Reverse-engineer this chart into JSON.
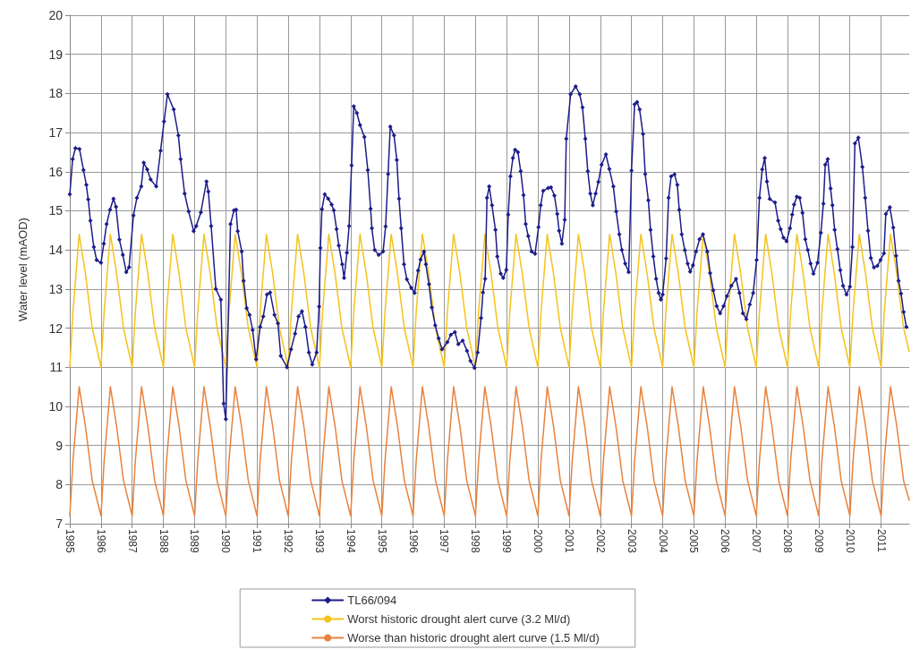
{
  "chart_data": {
    "type": "line",
    "ylabel": "Water level (mAOD)",
    "xlim": [
      1985,
      2011.9
    ],
    "xticks": [
      1985,
      1986,
      1987,
      1988,
      1989,
      1990,
      1991,
      1992,
      1993,
      1994,
      1995,
      1996,
      1997,
      1998,
      1999,
      2000,
      2001,
      2002,
      2003,
      2004,
      2005,
      2006,
      2007,
      2008,
      2009,
      2010,
      2011
    ],
    "ylim": [
      7,
      20
    ],
    "yticks": [
      7,
      8,
      9,
      10,
      11,
      12,
      13,
      14,
      15,
      16,
      17,
      18,
      19,
      20
    ],
    "grid": true,
    "legend": "bottom",
    "line_style": "solid",
    "series": [
      {
        "name": "TL66/094",
        "color": "#1c1c8a",
        "marker": "diamond",
        "x": [
          1985,
          1985.09,
          1985.18,
          1985.31,
          1985.44,
          1985.53,
          1985.59,
          1985.66,
          1985.77,
          1985.86,
          1986,
          1986.09,
          1986.18,
          1986.29,
          1986.4,
          1986.48,
          1986.59,
          1986.7,
          1986.81,
          1986.9,
          1987.04,
          1987.15,
          1987.29,
          1987.37,
          1987.48,
          1987.59,
          1987.77,
          1987.91,
          1988.02,
          1988.13,
          1988.33,
          1988.48,
          1988.55,
          1988.68,
          1988.81,
          1988.97,
          1989.05,
          1989.2,
          1989.38,
          1989.44,
          1989.53,
          1989.68,
          1989.84,
          1989.93,
          1990,
          1990.15,
          1990.26,
          1990.33,
          1990.38,
          1990.51,
          1990.57,
          1990.67,
          1990.76,
          1990.86,
          1990.97,
          1991.1,
          1991.2,
          1991.32,
          1991.42,
          1991.56,
          1991.67,
          1991.76,
          1991.96,
          1992.09,
          1992.22,
          1992.33,
          1992.44,
          1992.55,
          1992.66,
          1992.77,
          1992.91,
          1992.99,
          1993.03,
          1993.08,
          1993.17,
          1993.28,
          1993.39,
          1993.46,
          1993.55,
          1993.62,
          1993.73,
          1993.79,
          1993.88,
          1993.95,
          1994.03,
          1994.1,
          1994.2,
          1994.3,
          1994.44,
          1994.55,
          1994.64,
          1994.68,
          1994.77,
          1994.9,
          1995.04,
          1995.12,
          1995.2,
          1995.27,
          1995.39,
          1995.48,
          1995.55,
          1995.62,
          1995.71,
          1995.8,
          1995.94,
          1996.05,
          1996.16,
          1996.24,
          1996.35,
          1996.41,
          1996.51,
          1996.6,
          1996.71,
          1996.82,
          1996.93,
          1997.1,
          1997.21,
          1997.34,
          1997.45,
          1997.59,
          1997.73,
          1997.84,
          1997.97,
          1998.07,
          1998.18,
          1998.24,
          1998.31,
          1998.37,
          1998.44,
          1998.53,
          1998.64,
          1998.7,
          1998.81,
          1998.89,
          1998.99,
          1999.05,
          1999.12,
          1999.2,
          1999.27,
          1999.36,
          1999.45,
          1999.54,
          1999.61,
          1999.69,
          1999.8,
          1999.91,
          2000.02,
          2000.09,
          2000.17,
          2000.33,
          2000.42,
          2000.53,
          2000.62,
          2000.68,
          2000.77,
          2000.86,
          2000.91,
          2001.05,
          2001.21,
          2001.34,
          2001.43,
          2001.52,
          2001.6,
          2001.68,
          2001.76,
          2001.85,
          2001.94,
          2002.04,
          2002.18,
          2002.29,
          2002.42,
          2002.51,
          2002.61,
          2002.69,
          2002.8,
          2002.91,
          2003,
          2003.1,
          2003.18,
          2003.26,
          2003.37,
          2003.44,
          2003.54,
          2003.61,
          2003.7,
          2003.79,
          2003.87,
          2003.94,
          2004,
          2004.11,
          2004.19,
          2004.27,
          2004.38,
          2004.47,
          2004.53,
          2004.61,
          2004.71,
          2004.8,
          2004.88,
          2004.97,
          2005.07,
          2005.18,
          2005.29,
          2005.43,
          2005.52,
          2005.62,
          2005.73,
          2005.84,
          2005.95,
          2006.06,
          2006.2,
          2006.35,
          2006.46,
          2006.57,
          2006.68,
          2006.79,
          2006.9,
          2007.01,
          2007.1,
          2007.19,
          2007.27,
          2007.34,
          2007.43,
          2007.6,
          2007.7,
          2007.78,
          2007.87,
          2007.97,
          2008.08,
          2008.15,
          2008.21,
          2008.3,
          2008.39,
          2008.48,
          2008.57,
          2008.65,
          2008.74,
          2008.83,
          2008.96,
          2009.07,
          2009.15,
          2009.21,
          2009.29,
          2009.38,
          2009.44,
          2009.51,
          2009.6,
          2009.69,
          2009.78,
          2009.89,
          2010,
          2010.08,
          2010.16,
          2010.27,
          2010.4,
          2010.49,
          2010.58,
          2010.67,
          2010.77,
          2010.88,
          2010.98,
          2011.09,
          2011.15,
          2011.28,
          2011.39,
          2011.48,
          2011.56,
          2011.64,
          2011.72,
          2011.81
        ],
        "values": [
          15.42,
          16.32,
          16.6,
          16.58,
          16.04,
          15.66,
          15.29,
          14.75,
          14.07,
          13.74,
          13.67,
          14.16,
          14.66,
          15.03,
          15.31,
          15.1,
          14.26,
          13.87,
          13.43,
          13.56,
          14.88,
          15.33,
          15.62,
          16.23,
          16.06,
          15.8,
          15.62,
          16.54,
          17.28,
          17.98,
          17.59,
          16.93,
          16.32,
          15.44,
          14.98,
          14.48,
          14.61,
          14.96,
          15.75,
          15.49,
          14.61,
          13,
          12.73,
          10.07,
          9.67,
          14.66,
          15.01,
          15.03,
          14.48,
          13.96,
          13.21,
          12.51,
          12.34,
          11.95,
          11.2,
          12.03,
          12.3,
          12.86,
          12.91,
          12.34,
          12.12,
          11.29,
          11,
          11.46,
          11.86,
          12.3,
          12.43,
          12.03,
          11.38,
          11.07,
          11.38,
          12.55,
          14.05,
          15.04,
          15.42,
          15.31,
          15.16,
          15.01,
          14.53,
          14.11,
          13.63,
          13.28,
          13.93,
          14.61,
          16.16,
          17.67,
          17.5,
          17.19,
          16.89,
          16.04,
          15.05,
          14.55,
          14,
          13.87,
          13.96,
          14.6,
          15.94,
          17.15,
          16.93,
          16.3,
          15.31,
          14.55,
          13.63,
          13.25,
          13.03,
          12.9,
          13.47,
          13.75,
          13.96,
          13.63,
          13.12,
          12.53,
          12.07,
          11.74,
          11.46,
          11.64,
          11.83,
          11.9,
          11.59,
          11.68,
          11.42,
          11.16,
          10.98,
          11.38,
          12.26,
          12.91,
          13.26,
          15.33,
          15.62,
          15.14,
          14.51,
          13.83,
          13.39,
          13.28,
          13.49,
          14.9,
          15.88,
          16.35,
          16.56,
          16.5,
          16.01,
          15.4,
          14.66,
          14.35,
          13.96,
          13.9,
          14.58,
          15.14,
          15.51,
          15.58,
          15.6,
          15.39,
          14.92,
          14.49,
          14.16,
          14.77,
          16.84,
          17.98,
          18.18,
          17.98,
          17.64,
          16.84,
          16.01,
          15.44,
          15.14,
          15.44,
          15.74,
          16.18,
          16.44,
          16.07,
          15.62,
          14.98,
          14.4,
          14,
          13.65,
          13.43,
          16.03,
          17.72,
          17.78,
          17.59,
          16.96,
          15.94,
          15.27,
          14.51,
          13.83,
          13.26,
          12.9,
          12.73,
          12.86,
          13.78,
          15.33,
          15.88,
          15.93,
          15.66,
          15.03,
          14.4,
          13.99,
          13.65,
          13.44,
          13.61,
          13.96,
          14.27,
          14.4,
          13.96,
          13.41,
          12.97,
          12.56,
          12.38,
          12.56,
          12.82,
          13.08,
          13.26,
          12.9,
          12.38,
          12.23,
          12.6,
          12.9,
          13.74,
          15.33,
          16.06,
          16.35,
          15.75,
          15.3,
          15.21,
          14.75,
          14.53,
          14.31,
          14.22,
          14.55,
          14.9,
          15.16,
          15.36,
          15.33,
          14.95,
          14.27,
          14,
          13.65,
          13.39,
          13.67,
          14.44,
          15.18,
          16.18,
          16.32,
          15.57,
          15.14,
          14.51,
          14.02,
          13.48,
          13.08,
          12.86,
          13.06,
          14.07,
          16.72,
          16.87,
          16.12,
          15.33,
          14.49,
          13.79,
          13.55,
          13.59,
          13.74,
          13.91,
          14.92,
          15.09,
          14.57,
          13.85,
          13.21,
          12.88,
          12.41,
          12.03
        ]
      },
      {
        "name": "Worst historic drought alert curve (3.2 Ml/d)",
        "color": "#f5c31c",
        "marker": "none",
        "x": [
          1985,
          1985.1,
          1985.3,
          1985.5,
          1985.72,
          1986,
          1986.1,
          1986.3,
          1986.5,
          1986.72,
          1987,
          1987.1,
          1987.3,
          1987.5,
          1987.72,
          1988,
          1988.1,
          1988.3,
          1988.5,
          1988.72,
          1989,
          1989.1,
          1989.3,
          1989.5,
          1989.72,
          1990,
          1990.1,
          1990.3,
          1990.5,
          1990.72,
          1991,
          1991.1,
          1991.3,
          1991.5,
          1991.72,
          1992,
          1992.1,
          1992.3,
          1992.5,
          1992.72,
          1993,
          1993.1,
          1993.3,
          1993.5,
          1993.72,
          1994,
          1994.1,
          1994.3,
          1994.5,
          1994.72,
          1995,
          1995.1,
          1995.3,
          1995.5,
          1995.72,
          1996,
          1996.1,
          1996.3,
          1996.5,
          1996.72,
          1997,
          1997.1,
          1997.3,
          1997.5,
          1997.72,
          1998,
          1998.1,
          1998.3,
          1998.5,
          1998.72,
          1999,
          1999.1,
          1999.3,
          1999.5,
          1999.72,
          2000,
          2000.1,
          2000.3,
          2000.5,
          2000.72,
          2001,
          2001.1,
          2001.3,
          2001.5,
          2001.72,
          2002,
          2002.1,
          2002.3,
          2002.5,
          2002.72,
          2003,
          2003.1,
          2003.3,
          2003.5,
          2003.72,
          2004,
          2004.1,
          2004.3,
          2004.5,
          2004.72,
          2005,
          2005.1,
          2005.3,
          2005.5,
          2005.72,
          2006,
          2006.1,
          2006.3,
          2006.5,
          2006.72,
          2007,
          2007.1,
          2007.3,
          2007.5,
          2007.72,
          2008,
          2008.1,
          2008.3,
          2008.5,
          2008.72,
          2009,
          2009.1,
          2009.3,
          2009.5,
          2009.72,
          2010,
          2010.1,
          2010.3,
          2010.5,
          2010.72,
          2011,
          2011.1,
          2011.3,
          2011.5,
          2011.72,
          2011.9
        ],
        "values": [
          11,
          12.4,
          14.4,
          13.4,
          12,
          11,
          12.4,
          14.4,
          13.4,
          12,
          11,
          12.4,
          14.4,
          13.4,
          12,
          11,
          12.4,
          14.4,
          13.4,
          12,
          11,
          12.4,
          14.4,
          13.4,
          12,
          11,
          12.4,
          14.4,
          13.4,
          12,
          11,
          12.4,
          14.4,
          13.4,
          12,
          11,
          12.4,
          14.4,
          13.4,
          12,
          11,
          12.4,
          14.4,
          13.4,
          12,
          11,
          12.4,
          14.4,
          13.4,
          12,
          11,
          12.4,
          14.4,
          13.4,
          12,
          11,
          12.4,
          14.4,
          13.4,
          12,
          11,
          12.4,
          14.4,
          13.4,
          12,
          11,
          12.4,
          14.4,
          13.4,
          12,
          11,
          12.4,
          14.4,
          13.4,
          12,
          11,
          12.4,
          14.4,
          13.4,
          12,
          11,
          12.4,
          14.4,
          13.4,
          12,
          11,
          12.4,
          14.4,
          13.4,
          12,
          11,
          12.4,
          14.4,
          13.4,
          12,
          11,
          12.4,
          14.4,
          13.4,
          12,
          11,
          12.4,
          14.4,
          13.4,
          12,
          11,
          12.4,
          14.4,
          13.4,
          12,
          11,
          12.4,
          14.4,
          13.4,
          12,
          11,
          12.4,
          14.4,
          13.4,
          12,
          11,
          12.4,
          14.4,
          13.4,
          12,
          11,
          12.4,
          14.4,
          13.4,
          12,
          11,
          12.4,
          14.4,
          13.4,
          12,
          11.4
        ]
      },
      {
        "name": "Worse than historic drought alert curve (1.5 Ml/d)",
        "color": "#e8823e",
        "marker": "none",
        "x": [
          1985,
          1985.1,
          1985.3,
          1985.5,
          1985.72,
          1986,
          1986.1,
          1986.3,
          1986.5,
          1986.72,
          1987,
          1987.1,
          1987.3,
          1987.5,
          1987.72,
          1988,
          1988.1,
          1988.3,
          1988.5,
          1988.72,
          1989,
          1989.1,
          1989.3,
          1989.5,
          1989.72,
          1990,
          1990.1,
          1990.3,
          1990.5,
          1990.72,
          1991,
          1991.1,
          1991.3,
          1991.5,
          1991.72,
          1992,
          1992.1,
          1992.3,
          1992.5,
          1992.72,
          1993,
          1993.1,
          1993.3,
          1993.5,
          1993.72,
          1994,
          1994.1,
          1994.3,
          1994.5,
          1994.72,
          1995,
          1995.1,
          1995.3,
          1995.5,
          1995.72,
          1996,
          1996.1,
          1996.3,
          1996.5,
          1996.72,
          1997,
          1997.1,
          1997.3,
          1997.5,
          1997.72,
          1998,
          1998.1,
          1998.3,
          1998.5,
          1998.72,
          1999,
          1999.1,
          1999.3,
          1999.5,
          1999.72,
          2000,
          2000.1,
          2000.3,
          2000.5,
          2000.72,
          2001,
          2001.1,
          2001.3,
          2001.5,
          2001.72,
          2002,
          2002.1,
          2002.3,
          2002.5,
          2002.72,
          2003,
          2003.1,
          2003.3,
          2003.5,
          2003.72,
          2004,
          2004.1,
          2004.3,
          2004.5,
          2004.72,
          2005,
          2005.1,
          2005.3,
          2005.5,
          2005.72,
          2006,
          2006.1,
          2006.3,
          2006.5,
          2006.72,
          2007,
          2007.1,
          2007.3,
          2007.5,
          2007.72,
          2008,
          2008.1,
          2008.3,
          2008.5,
          2008.72,
          2009,
          2009.1,
          2009.3,
          2009.5,
          2009.72,
          2010,
          2010.1,
          2010.3,
          2010.5,
          2010.72,
          2011,
          2011.1,
          2011.3,
          2011.5,
          2011.72,
          2011.9
        ],
        "values": [
          7.2,
          8.6,
          10.5,
          9.5,
          8.1,
          7.2,
          8.6,
          10.5,
          9.5,
          8.1,
          7.2,
          8.6,
          10.5,
          9.5,
          8.1,
          7.2,
          8.6,
          10.5,
          9.5,
          8.1,
          7.2,
          8.6,
          10.5,
          9.5,
          8.1,
          7.2,
          8.6,
          10.5,
          9.5,
          8.1,
          7.2,
          8.6,
          10.5,
          9.5,
          8.1,
          7.2,
          8.6,
          10.5,
          9.5,
          8.1,
          7.2,
          8.6,
          10.5,
          9.5,
          8.1,
          7.2,
          8.6,
          10.5,
          9.5,
          8.1,
          7.2,
          8.6,
          10.5,
          9.5,
          8.1,
          7.2,
          8.6,
          10.5,
          9.5,
          8.1,
          7.2,
          8.6,
          10.5,
          9.5,
          8.1,
          7.2,
          8.6,
          10.5,
          9.5,
          8.1,
          7.2,
          8.6,
          10.5,
          9.5,
          8.1,
          7.2,
          8.6,
          10.5,
          9.5,
          8.1,
          7.2,
          8.6,
          10.5,
          9.5,
          8.1,
          7.2,
          8.6,
          10.5,
          9.5,
          8.1,
          7.2,
          8.6,
          10.5,
          9.5,
          8.1,
          7.2,
          8.6,
          10.5,
          9.5,
          8.1,
          7.2,
          8.6,
          10.5,
          9.5,
          8.1,
          7.2,
          8.6,
          10.5,
          9.5,
          8.1,
          7.2,
          8.6,
          10.5,
          9.5,
          8.1,
          7.2,
          8.6,
          10.5,
          9.5,
          8.1,
          7.2,
          8.6,
          10.5,
          9.5,
          8.1,
          7.2,
          8.6,
          10.5,
          9.5,
          8.1,
          7.2,
          8.6,
          10.5,
          9.5,
          8.1,
          7.6
        ]
      }
    ]
  }
}
